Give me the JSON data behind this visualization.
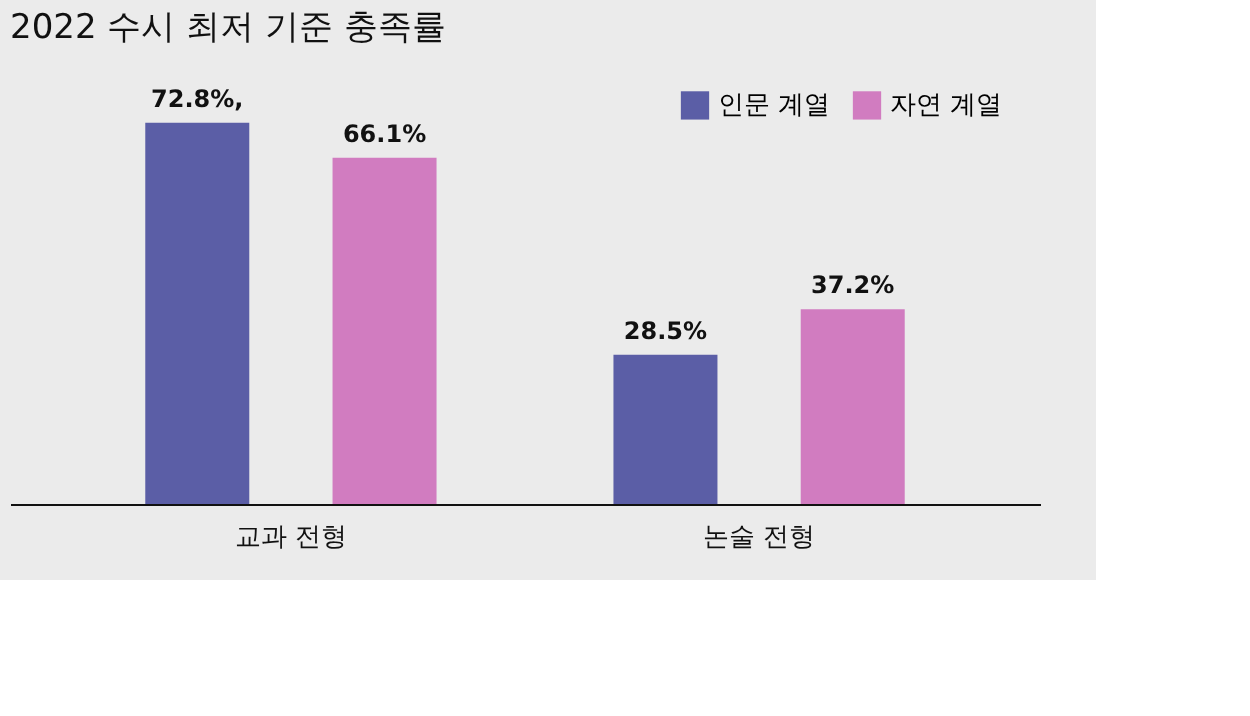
{
  "chart_data": {
    "type": "bar",
    "title": "2022 수시 최저 기준 충족률",
    "categories": [
      "교과 전형",
      "논술 전형"
    ],
    "series": [
      {
        "name": "인문 계열",
        "color": "#5b5ea6",
        "values": [
          72.8,
          28.5
        ],
        "value_labels": [
          "72.8%,",
          "28.5%"
        ]
      },
      {
        "name": "자연 계열",
        "color": "#d17cc0",
        "values": [
          66.1,
          37.2
        ],
        "value_labels": [
          "66.1%",
          "37.2%"
        ]
      }
    ],
    "legend": "top right",
    "grid": false
  }
}
